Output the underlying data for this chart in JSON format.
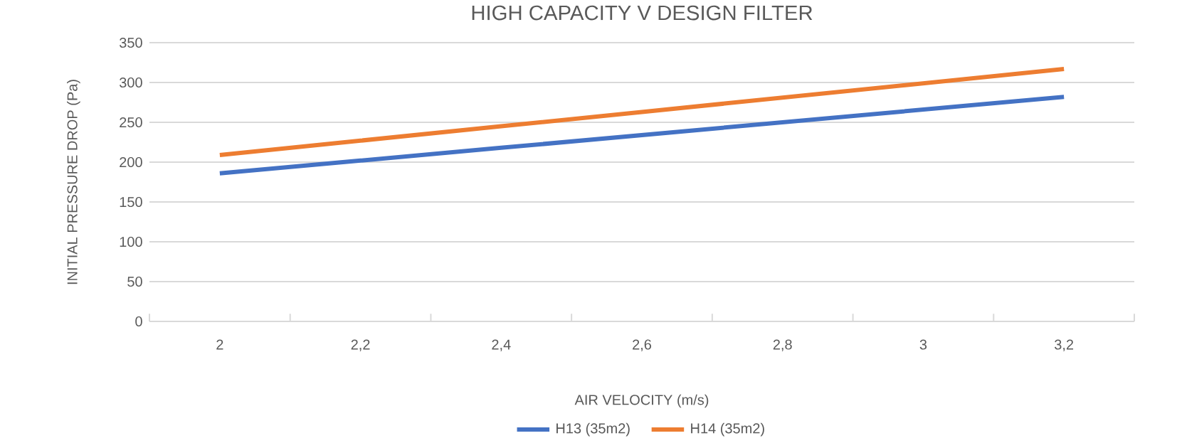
{
  "chart_data": {
    "type": "line",
    "title": "HIGH CAPACITY V  DESIGN FILTER",
    "xlabel": "AIR VELOCITY (m/s)",
    "ylabel": "INITIAL PRESSURE DROP (Pa)",
    "categories": [
      "2",
      "2,2",
      "2,4",
      "2,6",
      "2,8",
      "3",
      "3,2"
    ],
    "series": [
      {
        "name": "H13 (35m2)",
        "color": "#4472c4",
        "values": [
          186,
          202,
          218,
          234,
          250,
          266,
          282
        ]
      },
      {
        "name": "H14 (35m2)",
        "color": "#ed7d31",
        "values": [
          209,
          227,
          245,
          263,
          281,
          299,
          317
        ]
      }
    ],
    "ylim": [
      0,
      350
    ],
    "yticks": [
      0,
      50,
      100,
      150,
      200,
      250,
      300,
      350
    ],
    "grid": "y",
    "legend": "bottom",
    "marker": "none",
    "line_style": "solid"
  }
}
